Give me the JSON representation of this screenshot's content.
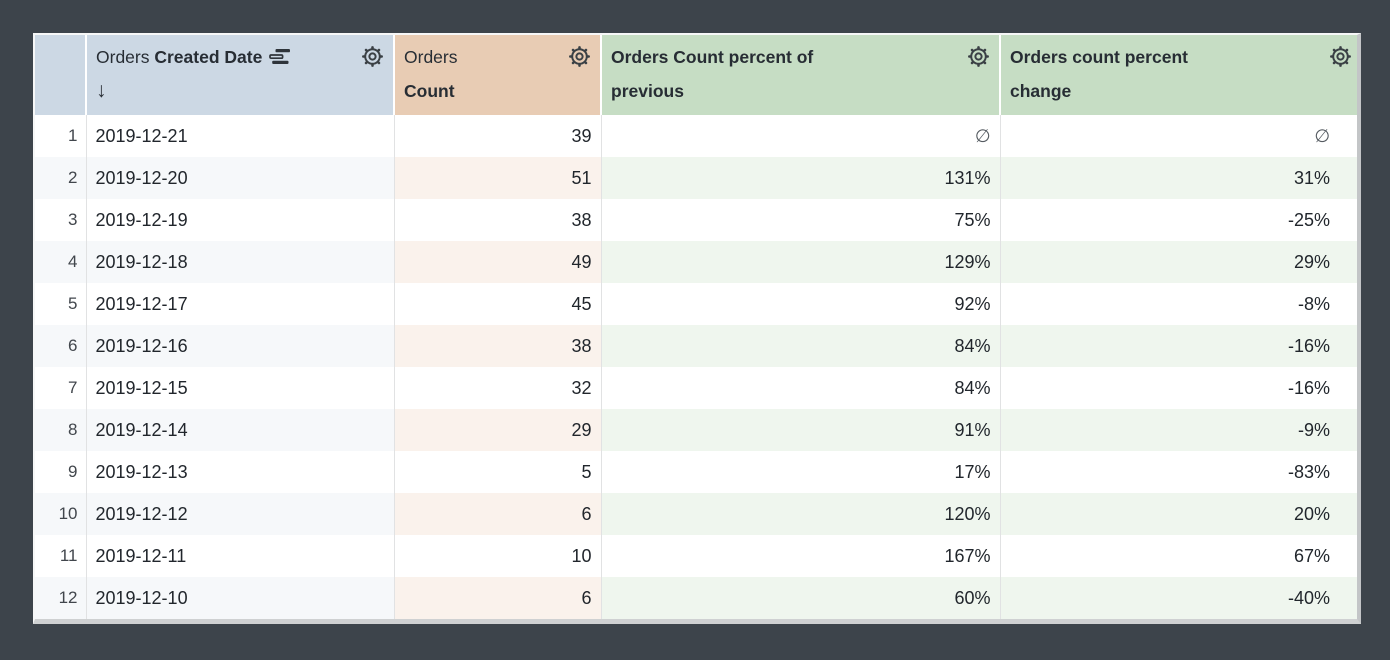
{
  "table": {
    "null_symbol": "∅",
    "columns": [
      {
        "id": "row_number",
        "label": ""
      },
      {
        "id": "orders_created_date",
        "view": "Orders",
        "field": "Created Date",
        "sort_arrow": "↓"
      },
      {
        "id": "orders_count",
        "view": "Orders",
        "field": "Count"
      },
      {
        "id": "orders_count_percent_of_previous",
        "label": "Orders Count percent of previous"
      },
      {
        "id": "orders_count_percent_change",
        "label": "Orders count percent change"
      }
    ],
    "rows": [
      {
        "n": 1,
        "date": "2019-12-21",
        "count": 39,
        "pct_prev": "∅",
        "pct_change": "∅"
      },
      {
        "n": 2,
        "date": "2019-12-20",
        "count": 51,
        "pct_prev": "131%",
        "pct_change": "31%"
      },
      {
        "n": 3,
        "date": "2019-12-19",
        "count": 38,
        "pct_prev": "75%",
        "pct_change": "-25%"
      },
      {
        "n": 4,
        "date": "2019-12-18",
        "count": 49,
        "pct_prev": "129%",
        "pct_change": "29%"
      },
      {
        "n": 5,
        "date": "2019-12-17",
        "count": 45,
        "pct_prev": "92%",
        "pct_change": "-8%"
      },
      {
        "n": 6,
        "date": "2019-12-16",
        "count": 38,
        "pct_prev": "84%",
        "pct_change": "-16%"
      },
      {
        "n": 7,
        "date": "2019-12-15",
        "count": 32,
        "pct_prev": "84%",
        "pct_change": "-16%"
      },
      {
        "n": 8,
        "date": "2019-12-14",
        "count": 29,
        "pct_prev": "91%",
        "pct_change": "-9%"
      },
      {
        "n": 9,
        "date": "2019-12-13",
        "count": 5,
        "pct_prev": "17%",
        "pct_change": "-83%"
      },
      {
        "n": 10,
        "date": "2019-12-12",
        "count": 6,
        "pct_prev": "120%",
        "pct_change": "20%"
      },
      {
        "n": 11,
        "date": "2019-12-11",
        "count": 10,
        "pct_prev": "167%",
        "pct_change": "67%"
      },
      {
        "n": 12,
        "date": "2019-12-10",
        "count": 6,
        "pct_prev": "60%",
        "pct_change": "-40%"
      }
    ]
  },
  "icons": {
    "gear": "gear-icon",
    "stacked_bars": "stacked-bars-icon",
    "sort_arrow_down": "arrow-down-icon"
  },
  "colors": {
    "page_background": "#3d444b",
    "dimension_header": "#ccd8e4",
    "measure_header": "#e8ccb4",
    "calc_header": "#c6ddc4",
    "dimension_row_tint": "#f6f8fa",
    "measure_row_tint": "#faf2ec",
    "calc_row_tint": "#eff6ee",
    "text": "#21262c",
    "grid_line": "#e1e2e3"
  }
}
